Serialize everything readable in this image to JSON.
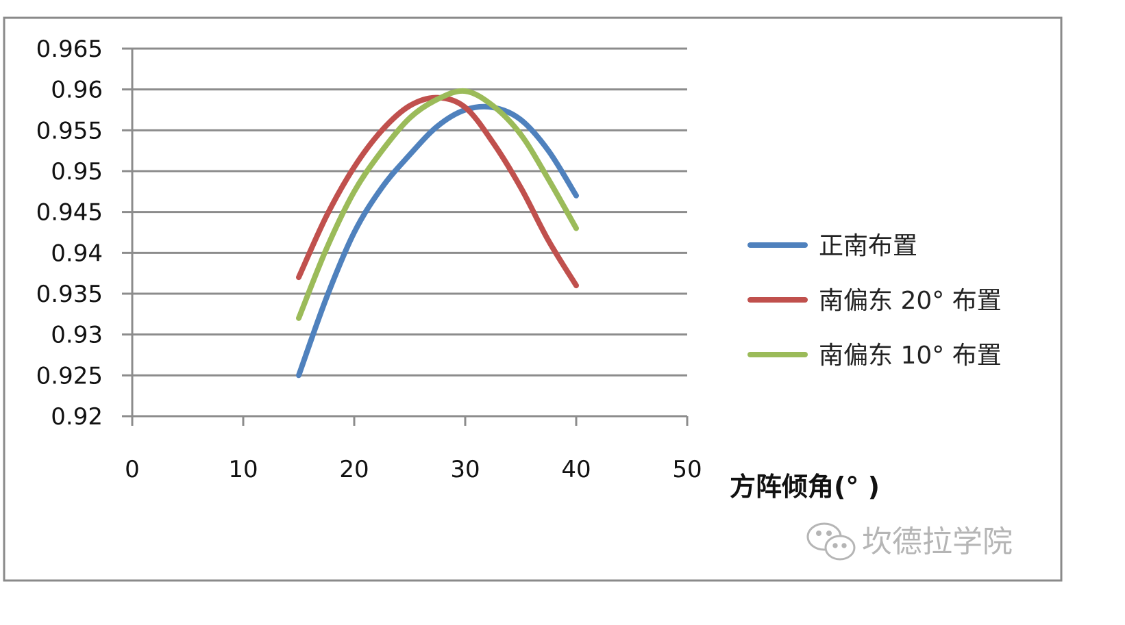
{
  "chart_data": {
    "type": "line",
    "title": "",
    "xlabel": "方阵倾角(°  )",
    "ylabel": "",
    "xlim": [
      0,
      50
    ],
    "ylim": [
      0.92,
      0.965
    ],
    "x_ticks": [
      "0",
      "10",
      "20",
      "30",
      "40",
      "50"
    ],
    "y_ticks": [
      "0.92",
      "0.925",
      "0.93",
      "0.935",
      "0.94",
      "0.945",
      "0.95",
      "0.955",
      "0.96",
      "0.965"
    ],
    "grid": true,
    "legend_position": "right",
    "series": [
      {
        "name": "正南布置",
        "color": "#4f81bd",
        "x": [
          15,
          17.5,
          20,
          22.5,
          25,
          27.5,
          30,
          32.5,
          35,
          37.5,
          40
        ],
        "y": [
          0.925,
          0.9345,
          0.9425,
          0.948,
          0.952,
          0.9555,
          0.9575,
          0.9578,
          0.9563,
          0.9525,
          0.947
        ]
      },
      {
        "name": "南偏东 20°  布置",
        "color": "#c0504d",
        "x": [
          15,
          17.5,
          20,
          22.5,
          25,
          27.5,
          30,
          32.5,
          35,
          37.5,
          40
        ],
        "y": [
          0.937,
          0.9445,
          0.9505,
          0.955,
          0.958,
          0.959,
          0.9578,
          0.9535,
          0.948,
          0.9415,
          0.936
        ]
      },
      {
        "name": "南偏东 10°  布置",
        "color": "#9bbb59",
        "x": [
          15,
          17.5,
          20,
          22.5,
          25,
          27.5,
          30,
          32.5,
          35,
          37.5,
          40
        ],
        "y": [
          0.932,
          0.9405,
          0.9475,
          0.9525,
          0.9565,
          0.9588,
          0.9598,
          0.958,
          0.9545,
          0.949,
          0.943
        ]
      }
    ]
  },
  "watermark": {
    "text": "坎德拉学院",
    "icon": "wechat-icon"
  }
}
